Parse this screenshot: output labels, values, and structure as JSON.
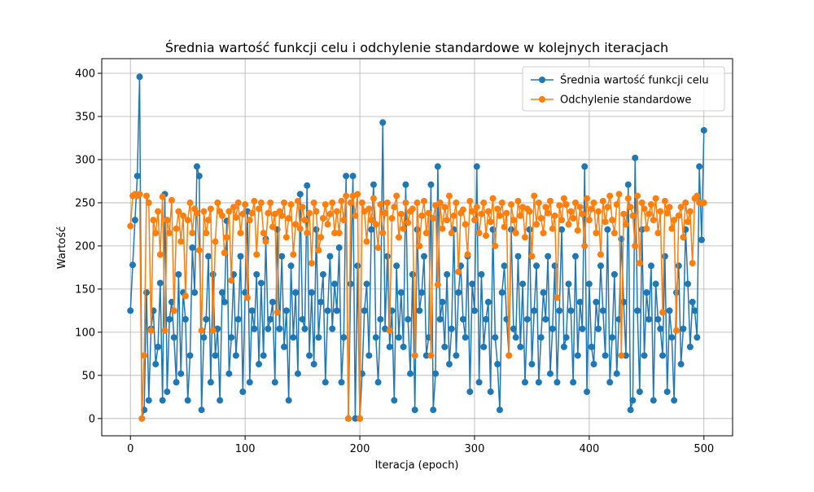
{
  "chart_data": {
    "type": "line",
    "title": "Średnia wartość funkcji celu i odchylenie standardowe w kolejnych iteracjach",
    "x_label": "Iteracja (epoch)",
    "y_label": "Wartość",
    "xlim": [
      -25,
      525
    ],
    "ylim": [
      -20,
      417
    ],
    "xticks": [
      0,
      100,
      200,
      300,
      400,
      500
    ],
    "yticks": [
      0,
      50,
      100,
      150,
      200,
      250,
      300,
      350,
      400
    ],
    "grid": true,
    "legend": "upper right",
    "marker": "o",
    "x": [
      0,
      2,
      4,
      6,
      8,
      10,
      12,
      14,
      16,
      18,
      20,
      22,
      24,
      26,
      28,
      30,
      32,
      34,
      36,
      38,
      40,
      42,
      44,
      46,
      48,
      50,
      52,
      54,
      56,
      58,
      60,
      62,
      64,
      66,
      68,
      70,
      72,
      74,
      76,
      78,
      80,
      82,
      84,
      86,
      88,
      90,
      92,
      94,
      96,
      98,
      100,
      102,
      104,
      106,
      108,
      110,
      112,
      114,
      116,
      118,
      120,
      122,
      124,
      126,
      128,
      130,
      132,
      134,
      136,
      138,
      140,
      142,
      144,
      146,
      148,
      150,
      152,
      154,
      156,
      158,
      160,
      162,
      164,
      166,
      168,
      170,
      172,
      174,
      176,
      178,
      180,
      182,
      184,
      186,
      188,
      190,
      192,
      194,
      196,
      198,
      200,
      202,
      204,
      206,
      208,
      210,
      212,
      214,
      216,
      218,
      220,
      222,
      224,
      226,
      228,
      230,
      232,
      234,
      236,
      238,
      240,
      242,
      244,
      246,
      248,
      250,
      252,
      254,
      256,
      258,
      260,
      262,
      264,
      266,
      268,
      270,
      272,
      274,
      276,
      278,
      280,
      282,
      284,
      286,
      288,
      290,
      292,
      294,
      296,
      298,
      300,
      302,
      304,
      306,
      308,
      310,
      312,
      314,
      316,
      318,
      320,
      322,
      324,
      326,
      328,
      330,
      332,
      334,
      336,
      338,
      340,
      342,
      344,
      346,
      348,
      350,
      352,
      354,
      356,
      358,
      360,
      362,
      364,
      366,
      368,
      370,
      372,
      374,
      376,
      378,
      380,
      382,
      384,
      386,
      388,
      390,
      392,
      394,
      396,
      398,
      400,
      402,
      404,
      406,
      408,
      410,
      412,
      414,
      416,
      418,
      420,
      422,
      424,
      426,
      428,
      430,
      432,
      434,
      436,
      438,
      440,
      442,
      444,
      446,
      448,
      450,
      452,
      454,
      456,
      458,
      460,
      462,
      464,
      466,
      468,
      470,
      472,
      474,
      476,
      478,
      480,
      482,
      484,
      486,
      488,
      490,
      492,
      494,
      496,
      498,
      500
    ],
    "series": [
      {
        "name": "Średnia wartość funkcji celu",
        "color": "#1f77b4",
        "values": [
          125,
          178,
          230,
          281,
          396,
          0,
          10,
          146,
          21,
          104,
          125,
          63,
          83,
          157,
          21,
          260,
          31,
          115,
          135,
          94,
          42,
          167,
          52,
          146,
          115,
          21,
          73,
          198,
          146,
          292,
          281,
          10,
          94,
          115,
          188,
          42,
          167,
          73,
          104,
          21,
          146,
          135,
          229,
          52,
          94,
          167,
          73,
          115,
          188,
          31,
          146,
          240,
          42,
          125,
          104,
          167,
          63,
          157,
          73,
          208,
          104,
          115,
          135,
          42,
          219,
          104,
          188,
          83,
          125,
          21,
          177,
          94,
          146,
          52,
          260,
          115,
          104,
          270,
          73,
          146,
          63,
          219,
          94,
          135,
          167,
          42,
          125,
          188,
          104,
          156,
          125,
          198,
          42,
          94,
          281,
          0,
          156,
          281,
          0,
          177,
          0,
          52,
          125,
          156,
          73,
          219,
          271,
          94,
          42,
          115,
          343,
          104,
          188,
          83,
          125,
          21,
          177,
          94,
          146,
          83,
          271,
          115,
          52,
          167,
          10,
          219,
          125,
          146,
          188,
          73,
          94,
          271,
          10,
          52,
          292,
          115,
          135,
          83,
          167,
          63,
          104,
          219,
          73,
          146,
          177,
          115,
          94,
          188,
          31,
          156,
          125,
          292,
          42,
          167,
          83,
          115,
          135,
          31,
          219,
          94,
          63,
          10,
          146,
          177,
          115,
          73,
          219,
          104,
          94,
          188,
          83,
          156,
          42,
          115,
          219,
          63,
          125,
          177,
          42,
          94,
          146,
          115,
          188,
          52,
          104,
          177,
          42,
          125,
          219,
          83,
          94,
          156,
          125,
          42,
          188,
          73,
          135,
          104,
          292,
          31,
          156,
          83,
          63,
          135,
          104,
          177,
          125,
          73,
          219,
          42,
          94,
          167,
          52,
          115,
          208,
          135,
          73,
          271,
          10,
          21,
          302,
          125,
          31,
          219,
          73,
          146,
          115,
          177,
          21,
          156,
          115,
          104,
          73,
          188,
          31,
          125,
          94,
          21,
          146,
          177,
          63,
          104,
          219,
          156,
          83,
          135,
          125,
          94,
          292,
          207,
          334
        ]
      },
      {
        "name": "Odchylenie standardowe",
        "color": "#ff7f0e",
        "values": [
          223,
          258,
          260,
          258,
          260,
          0,
          73,
          258,
          250,
          102,
          230,
          215,
          240,
          190,
          257,
          102,
          230,
          215,
          253,
          125,
          220,
          240,
          205,
          235,
          142,
          230,
          250,
          215,
          243,
          238,
          195,
          102,
          240,
          215,
          230,
          243,
          102,
          205,
          250,
          240,
          235,
          192,
          210,
          240,
          160,
          245,
          233,
          250,
          215,
          237,
          248,
          140,
          230,
          238,
          252,
          190,
          243,
          250,
          215,
          205,
          238,
          250,
          222,
          237,
          123,
          240,
          235,
          250,
          210,
          232,
          248,
          190,
          225,
          252,
          220,
          245,
          230,
          215,
          238,
          180,
          250,
          240,
          195,
          210,
          232,
          248,
          225,
          237,
          250,
          215,
          240,
          215,
          252,
          230,
          258,
          0,
          250,
          258,
          235,
          260,
          0,
          250,
          240,
          205,
          243,
          230,
          255,
          225,
          198,
          248,
          215,
          238,
          250,
          102,
          232,
          245,
          258,
          210,
          237,
          220,
          250,
          227,
          240,
          243,
          73,
          250,
          200,
          235,
          252,
          215,
          238,
          73,
          232,
          247,
          155,
          250,
          220,
          245,
          230,
          258,
          215,
          235,
          250,
          170,
          238,
          242,
          225,
          190,
          252,
          240,
          230,
          245,
          215,
          237,
          250,
          212,
          240,
          228,
          255,
          200,
          243,
          235,
          250,
          222,
          238,
          73,
          248,
          230,
          215,
          252,
          235,
          245,
          210,
          243,
          240,
          188,
          258,
          225,
          250,
          232,
          215,
          245,
          238,
          252,
          220,
          235,
          140,
          247,
          230,
          255,
          248,
          225,
          240,
          232,
          250,
          218,
          245,
          237,
          200,
          255,
          230,
          243,
          250,
          215,
          240,
          190,
          252,
          228,
          245,
          258,
          230,
          215,
          248,
          260,
          73,
          237,
          225,
          255,
          245,
          235,
          200,
          258,
          180,
          250,
          243,
          220,
          237,
          248,
          230,
          255,
          215,
          240,
          123,
          252,
          238,
          245,
          220,
          230,
          102,
          235,
          245,
          210,
          250,
          228,
          240,
          180,
          255,
          258,
          250,
          250,
          250
        ]
      }
    ]
  }
}
